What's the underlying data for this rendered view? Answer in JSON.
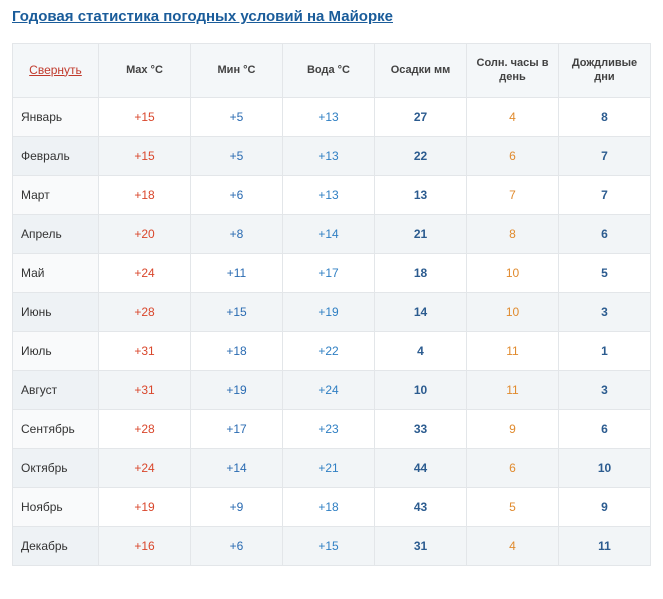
{
  "title": "Годовая статистика погодных условий на Майорке",
  "collapse_label": "Свернуть",
  "headers": {
    "max": "Max °C",
    "min": "Мин °C",
    "water": "Вода °C",
    "precip": "Осадки мм",
    "sun": "Солн. часы в день",
    "rain": "Дождливые дни"
  },
  "colors": {
    "title": "#1a5c9a",
    "collapse": "#c0392b",
    "max": "#d9462b",
    "min": "#2a6bb2",
    "water": "#2f7fc3",
    "precip": "#2b5b8f",
    "sun": "#e08a2d",
    "rain": "#2b5b8f",
    "border": "#e3e6e9",
    "header_bg": "#f4f7f9",
    "row_alt_bg": "#f2f5f7"
  },
  "rows": [
    {
      "month": "Январь",
      "max": "+15",
      "min": "+5",
      "water": "+13",
      "precip": "27",
      "sun": "4",
      "rain": "8"
    },
    {
      "month": "Февраль",
      "max": "+15",
      "min": "+5",
      "water": "+13",
      "precip": "22",
      "sun": "6",
      "rain": "7"
    },
    {
      "month": "Март",
      "max": "+18",
      "min": "+6",
      "water": "+13",
      "precip": "13",
      "sun": "7",
      "rain": "7"
    },
    {
      "month": "Апрель",
      "max": "+20",
      "min": "+8",
      "water": "+14",
      "precip": "21",
      "sun": "8",
      "rain": "6"
    },
    {
      "month": "Май",
      "max": "+24",
      "min": "+11",
      "water": "+17",
      "precip": "18",
      "sun": "10",
      "rain": "5"
    },
    {
      "month": "Июнь",
      "max": "+28",
      "min": "+15",
      "water": "+19",
      "precip": "14",
      "sun": "10",
      "rain": "3"
    },
    {
      "month": "Июль",
      "max": "+31",
      "min": "+18",
      "water": "+22",
      "precip": "4",
      "sun": "11",
      "rain": "1"
    },
    {
      "month": "Август",
      "max": "+31",
      "min": "+19",
      "water": "+24",
      "precip": "10",
      "sun": "11",
      "rain": "3"
    },
    {
      "month": "Сентябрь",
      "max": "+28",
      "min": "+17",
      "water": "+23",
      "precip": "33",
      "sun": "9",
      "rain": "6"
    },
    {
      "month": "Октябрь",
      "max": "+24",
      "min": "+14",
      "water": "+21",
      "precip": "44",
      "sun": "6",
      "rain": "10"
    },
    {
      "month": "Ноябрь",
      "max": "+19",
      "min": "+9",
      "water": "+18",
      "precip": "43",
      "sun": "5",
      "rain": "9"
    },
    {
      "month": "Декабрь",
      "max": "+16",
      "min": "+6",
      "water": "+15",
      "precip": "31",
      "sun": "4",
      "rain": "11"
    }
  ]
}
